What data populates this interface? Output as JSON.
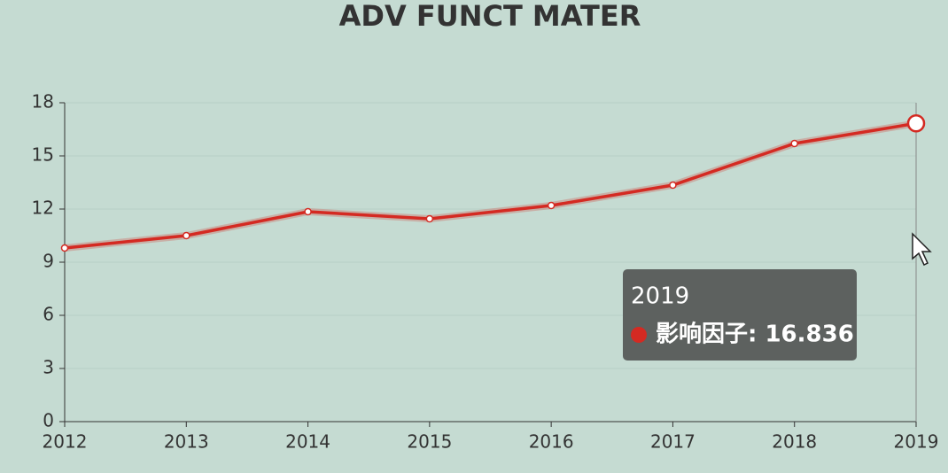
{
  "chart_data": {
    "type": "line",
    "title": "ADV FUNCT MATER",
    "categories": [
      "2012",
      "2013",
      "2014",
      "2015",
      "2016",
      "2017",
      "2018",
      "2019"
    ],
    "series": [
      {
        "name": "影响因子",
        "color": "#d42a22",
        "values": [
          9.8,
          10.5,
          11.85,
          11.45,
          12.2,
          13.35,
          15.7,
          16.836
        ]
      }
    ],
    "ylim": [
      0,
      18
    ],
    "yticks": [
      0,
      3,
      6,
      9,
      12,
      15,
      18
    ],
    "grid": true,
    "tooltip": {
      "text": "影响因子: 16.836"
    }
  }
}
